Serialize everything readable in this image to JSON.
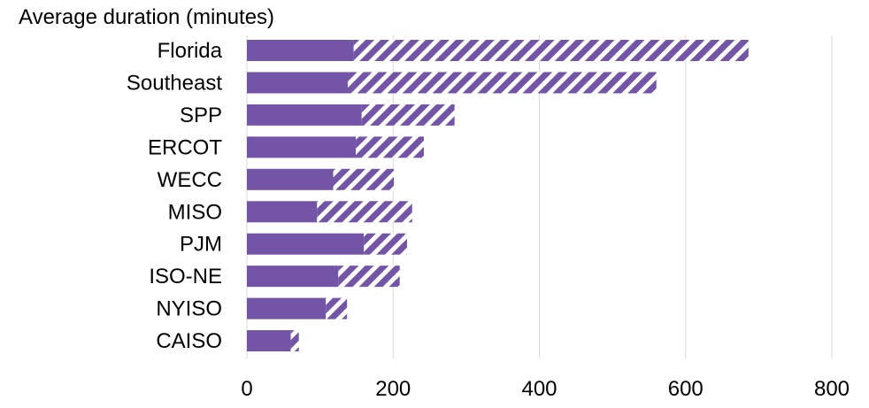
{
  "chart_data": {
    "type": "bar",
    "orientation": "horizontal",
    "stacked": true,
    "title": "Average duration (minutes)",
    "xlabel": "",
    "ylabel": "",
    "xlim": [
      0,
      800
    ],
    "xticks": [
      0,
      200,
      400,
      600,
      800
    ],
    "grid": "vertical",
    "legend": "none",
    "categories": [
      "Florida",
      "Southeast",
      "SPP",
      "ERCOT",
      "WECC",
      "MISO",
      "PJM",
      "ISO-NE",
      "NYISO",
      "CAISO"
    ],
    "series": [
      {
        "fill": "solid",
        "color": "#7454A6",
        "values": [
          146,
          138,
          157,
          149,
          118,
          96,
          160,
          125,
          108,
          60
        ]
      },
      {
        "fill": "hatched",
        "color": "#7454A6",
        "values": [
          540,
          422,
          127,
          93,
          83,
          130,
          59,
          84,
          29,
          11
        ]
      }
    ]
  }
}
